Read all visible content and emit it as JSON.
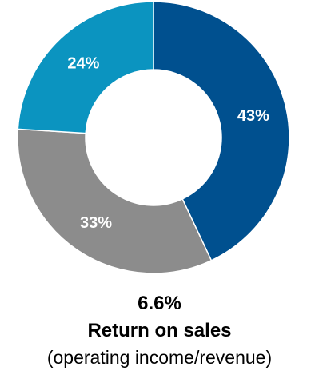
{
  "chart_data": {
    "type": "pie",
    "donut": true,
    "slices": [
      {
        "label": "43%",
        "value": 43,
        "color": "#00508f"
      },
      {
        "label": "33%",
        "value": 33,
        "color": "#8c8c8c"
      },
      {
        "label": "24%",
        "value": 24,
        "color": "#0b94c0"
      }
    ],
    "start": "12 o'clock, clockwise"
  },
  "caption": {
    "value": "6.6%",
    "title": "Return on sales",
    "subtitle": "(operating income/revenue)"
  }
}
